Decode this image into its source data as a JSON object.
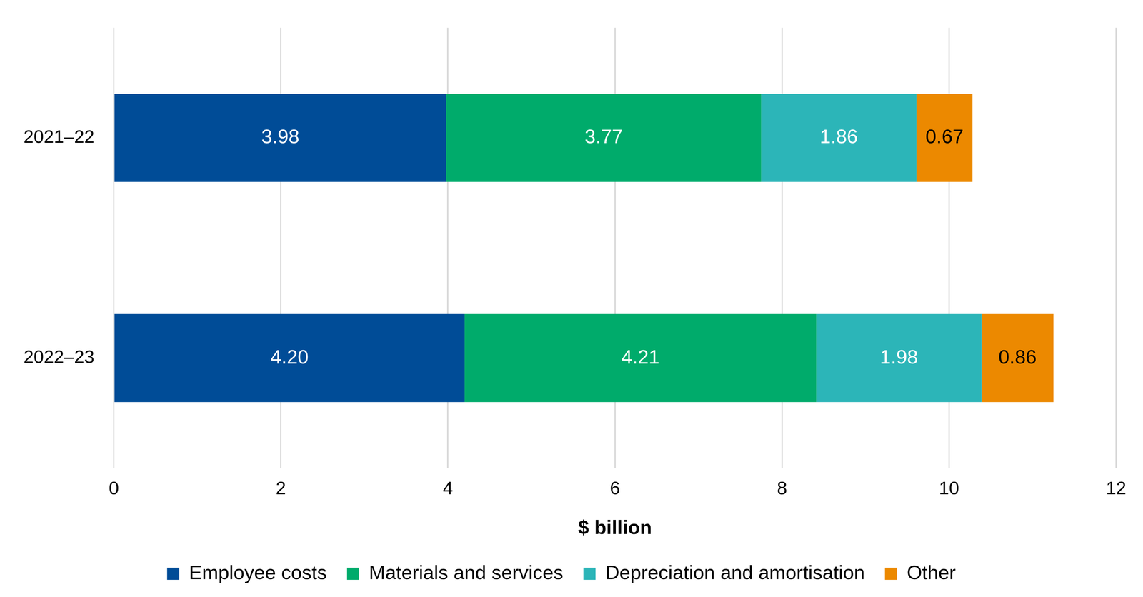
{
  "chart_data": {
    "type": "bar",
    "orientation": "horizontal",
    "stacked": true,
    "categories": [
      "2021–22",
      "2022–23"
    ],
    "series": [
      {
        "name": "Employee costs",
        "color": "#004c97",
        "values": [
          3.98,
          4.2
        ],
        "value_labels": [
          "3.98",
          "4.20"
        ]
      },
      {
        "name": "Materials and services",
        "color": "#00ab6b",
        "values": [
          3.77,
          4.21
        ],
        "value_labels": [
          "3.77",
          "4.21"
        ]
      },
      {
        "name": "Depreciation and amortisation",
        "color": "#2cb5b8",
        "values": [
          1.86,
          1.98
        ],
        "value_labels": [
          "1.86",
          "1.98"
        ]
      },
      {
        "name": "Other",
        "color": "#ec8900",
        "values": [
          0.67,
          0.86
        ],
        "value_labels": [
          "0.67",
          "0.86"
        ]
      }
    ],
    "x_label": "$ billion",
    "xlim": [
      0,
      12
    ],
    "xticks": [
      0,
      2,
      4,
      6,
      8,
      10,
      12
    ],
    "grid": true,
    "legend": "bottom",
    "data_labels": true
  }
}
